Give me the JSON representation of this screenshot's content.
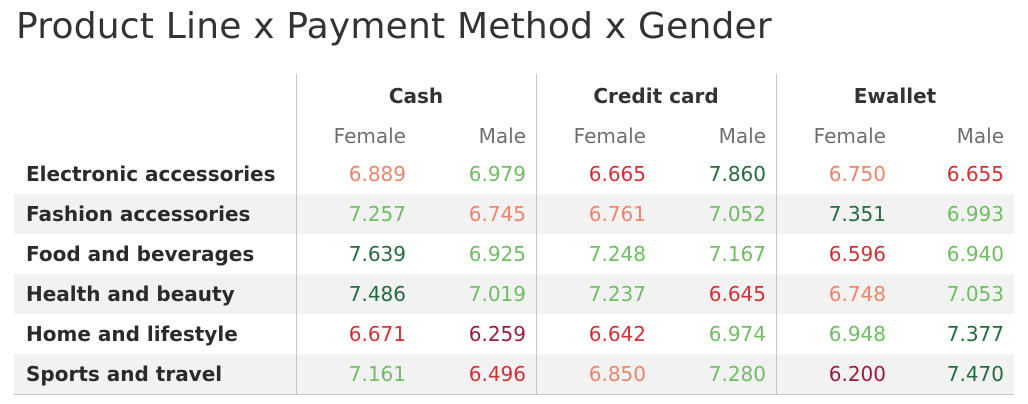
{
  "title": "Product Line x Payment Method x Gender",
  "chart_data": {
    "type": "table",
    "title": "Product Line x Payment Method x Gender",
    "payment_methods": [
      "Cash",
      "Credit card",
      "Ewallet"
    ],
    "genders": [
      "Female",
      "Male"
    ],
    "rows": [
      {
        "label": "Electronic accessories",
        "values": [
          "6.889",
          "6.979",
          "6.665",
          "7.860",
          "6.750",
          "6.655"
        ]
      },
      {
        "label": "Fashion accessories",
        "values": [
          "7.257",
          "6.745",
          "6.761",
          "7.052",
          "7.351",
          "6.993"
        ]
      },
      {
        "label": "Food and beverages",
        "values": [
          "7.639",
          "6.925",
          "7.248",
          "7.167",
          "6.596",
          "6.940"
        ]
      },
      {
        "label": "Health and beauty",
        "values": [
          "7.486",
          "7.019",
          "7.237",
          "6.645",
          "6.748",
          "7.053"
        ]
      },
      {
        "label": "Home and lifestyle",
        "values": [
          "6.671",
          "6.259",
          "6.642",
          "6.974",
          "6.948",
          "7.377"
        ]
      },
      {
        "label": "Sports and travel",
        "values": [
          "7.161",
          "6.496",
          "6.850",
          "7.280",
          "6.200",
          "7.470"
        ]
      }
    ],
    "color_scale": {
      "low": "#9e1b3c",
      "mid_low": "#d62f35",
      "mid": "#ef8569",
      "mid_high": "#6fbe62",
      "high": "#236d3d"
    }
  }
}
